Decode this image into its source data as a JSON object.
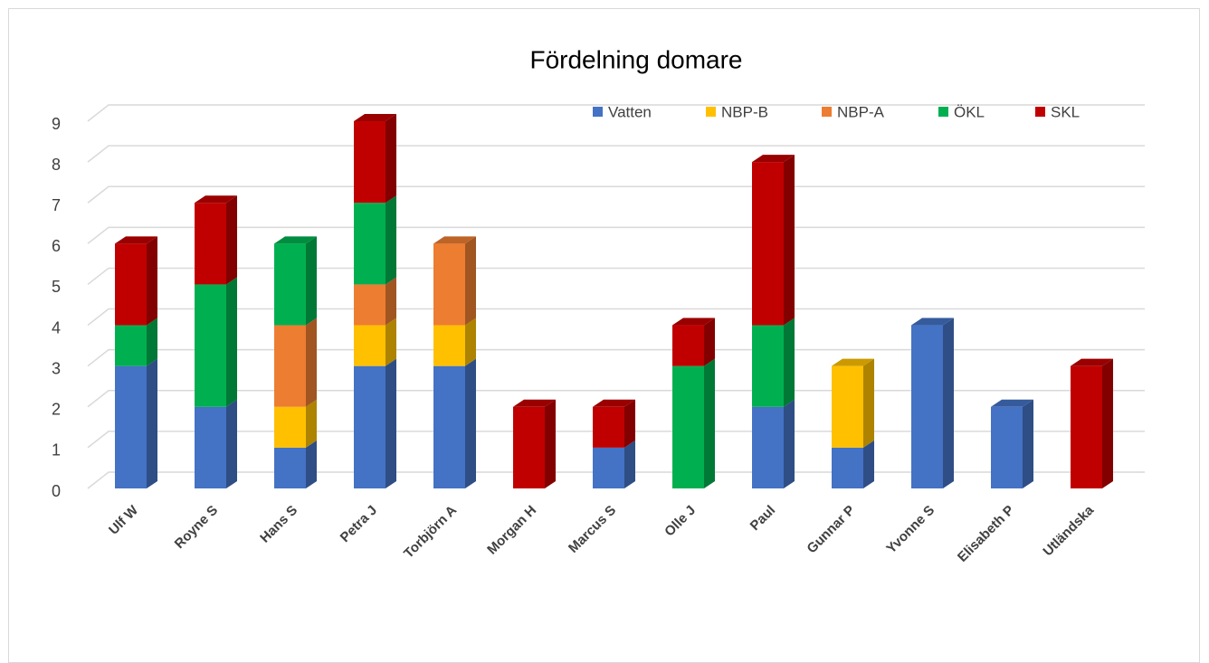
{
  "chart_data": {
    "type": "bar",
    "stacked": true,
    "title": "Fördelning domare",
    "categories": [
      "Ulf W",
      "Royne S",
      "Hans S",
      "Petra J",
      "Torbjörn A",
      "Morgan H",
      "Marcus S",
      "Olle J",
      "Paul",
      "Gunnar P",
      "Yvonne S",
      "Elisabeth P",
      "Utländska"
    ],
    "series": [
      {
        "name": "Vatten",
        "color": "#4472c4",
        "values": [
          3,
          2,
          1,
          3,
          3,
          0,
          1,
          0,
          2,
          1,
          4,
          2,
          0
        ]
      },
      {
        "name": "NBP-B",
        "color": "#ffc000",
        "values": [
          0,
          0,
          1,
          1,
          1,
          0,
          0,
          0,
          0,
          2,
          0,
          0,
          0
        ]
      },
      {
        "name": "NBP-A",
        "color": "#ed7d31",
        "values": [
          0,
          0,
          2,
          1,
          2,
          0,
          0,
          0,
          0,
          0,
          0,
          0,
          0
        ]
      },
      {
        "name": "ÖKL",
        "color": "#00b050",
        "values": [
          1,
          3,
          2,
          2,
          0,
          0,
          0,
          3,
          2,
          0,
          0,
          0,
          0
        ]
      },
      {
        "name": "SKL",
        "color": "#c00000",
        "values": [
          2,
          2,
          0,
          2,
          0,
          2,
          1,
          1,
          4,
          0,
          0,
          0,
          3
        ]
      }
    ],
    "ylim": [
      0,
      9
    ],
    "yticks": [
      0,
      1,
      2,
      3,
      4,
      5,
      6,
      7,
      8,
      9
    ],
    "grid": true,
    "legend": "top"
  }
}
